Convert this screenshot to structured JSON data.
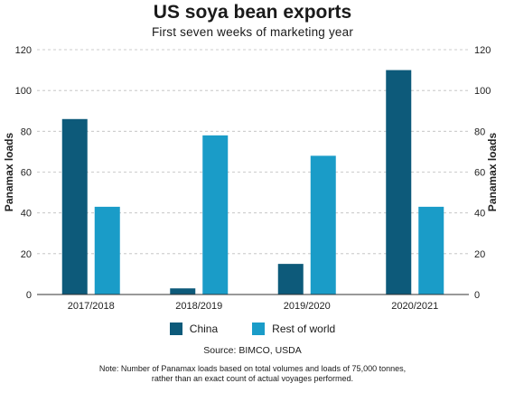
{
  "colors": {
    "china": "#0d5a7a",
    "rest_of_world": "#1a9cc8"
  },
  "texts": {
    "source": "Source: BIMCO, USDA",
    "note_line1": "Note: Number of Panamax loads based on total volumes and loads of 75,000 tonnes,",
    "note_line2": "rather than an exact count of actual voyages performed."
  },
  "chart_data": {
    "type": "bar",
    "title": "US soya bean exports",
    "subtitle": "First seven weeks of marketing year",
    "categories": [
      "2017/2018",
      "2018/2019",
      "2019/2020",
      "2020/2021"
    ],
    "series": [
      {
        "name": "China",
        "values": [
          86,
          3,
          15,
          110
        ]
      },
      {
        "name": "Rest of world",
        "values": [
          43,
          78,
          68,
          43
        ]
      }
    ],
    "ylabel": "Panamax loads",
    "ylabel_right": "Panamax loads",
    "ylim": [
      0,
      120
    ],
    "yticks": [
      0,
      20,
      40,
      60,
      80,
      100,
      120
    ],
    "grid": true,
    "legend": "bottom-center"
  }
}
